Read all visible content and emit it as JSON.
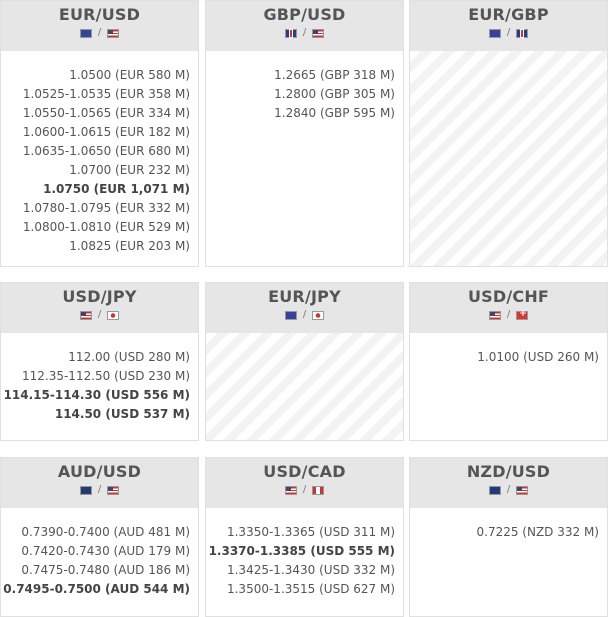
{
  "pairs": [
    {
      "title": "EUR/USD",
      "flags": [
        "eu",
        "us"
      ],
      "levels": [
        {
          "t": "1.0500 (EUR 580 M)"
        },
        {
          "t": "1.0525-1.0535 (EUR 358 M)"
        },
        {
          "t": "1.0550-1.0565 (EUR 334 M)"
        },
        {
          "t": "1.0600-1.0615 (EUR 182 M)"
        },
        {
          "t": "1.0635-1.0650 (EUR 680 M)"
        },
        {
          "t": "1.0700 (EUR 232 M)"
        },
        {
          "t": "1.0750 (EUR 1,071 M)",
          "bold": true
        },
        {
          "t": "1.0780-1.0795 (EUR 332 M)"
        },
        {
          "t": "1.0800-1.0810 (EUR 529 M)"
        },
        {
          "t": "1.0825 (EUR 203 M)"
        }
      ]
    },
    {
      "title": "GBP/USD",
      "flags": [
        "gb",
        "us"
      ],
      "levels": [
        {
          "t": "1.2665 (GBP 318 M)"
        },
        {
          "t": "1.2800 (GBP 305 M)"
        },
        {
          "t": "1.2840 (GBP 595 M)"
        }
      ]
    },
    {
      "title": "EUR/GBP",
      "flags": [
        "eu",
        "gb"
      ],
      "levels": []
    },
    {
      "title": "USD/JPY",
      "flags": [
        "us",
        "jp"
      ],
      "levels": [
        {
          "t": "112.00 (USD 280 M)"
        },
        {
          "t": "112.35-112.50 (USD 230 M)"
        },
        {
          "t": "114.15-114.30 (USD 556 M)",
          "bold": true
        },
        {
          "t": "114.50 (USD 537 M)",
          "bold": true
        }
      ]
    },
    {
      "title": "EUR/JPY",
      "flags": [
        "eu",
        "jp"
      ],
      "levels": []
    },
    {
      "title": "USD/CHF",
      "flags": [
        "us",
        "ch"
      ],
      "levels": [
        {
          "t": "1.0100 (USD 260 M)"
        }
      ]
    },
    {
      "title": "AUD/USD",
      "flags": [
        "au",
        "us"
      ],
      "levels": [
        {
          "t": "0.7390-0.7400 (AUD 481 M)"
        },
        {
          "t": "0.7420-0.7430 (AUD 179 M)"
        },
        {
          "t": "0.7475-0.7480 (AUD 186 M)"
        },
        {
          "t": "0.7495-0.7500 (AUD 544 M)",
          "bold": true
        }
      ]
    },
    {
      "title": "USD/CAD",
      "flags": [
        "us",
        "ca"
      ],
      "levels": [
        {
          "t": "1.3350-1.3365 (USD 311 M)"
        },
        {
          "t": "1.3370-1.3385 (USD 555 M)",
          "bold": true
        },
        {
          "t": "1.3425-1.3430 (USD 332 M)"
        },
        {
          "t": "1.3500-1.3515 (USD 627 M)"
        }
      ]
    },
    {
      "title": "NZD/USD",
      "flags": [
        "nz",
        "us"
      ],
      "levels": [
        {
          "t": "0.7225 (NZD 332 M)"
        }
      ]
    }
  ],
  "separator": "/"
}
